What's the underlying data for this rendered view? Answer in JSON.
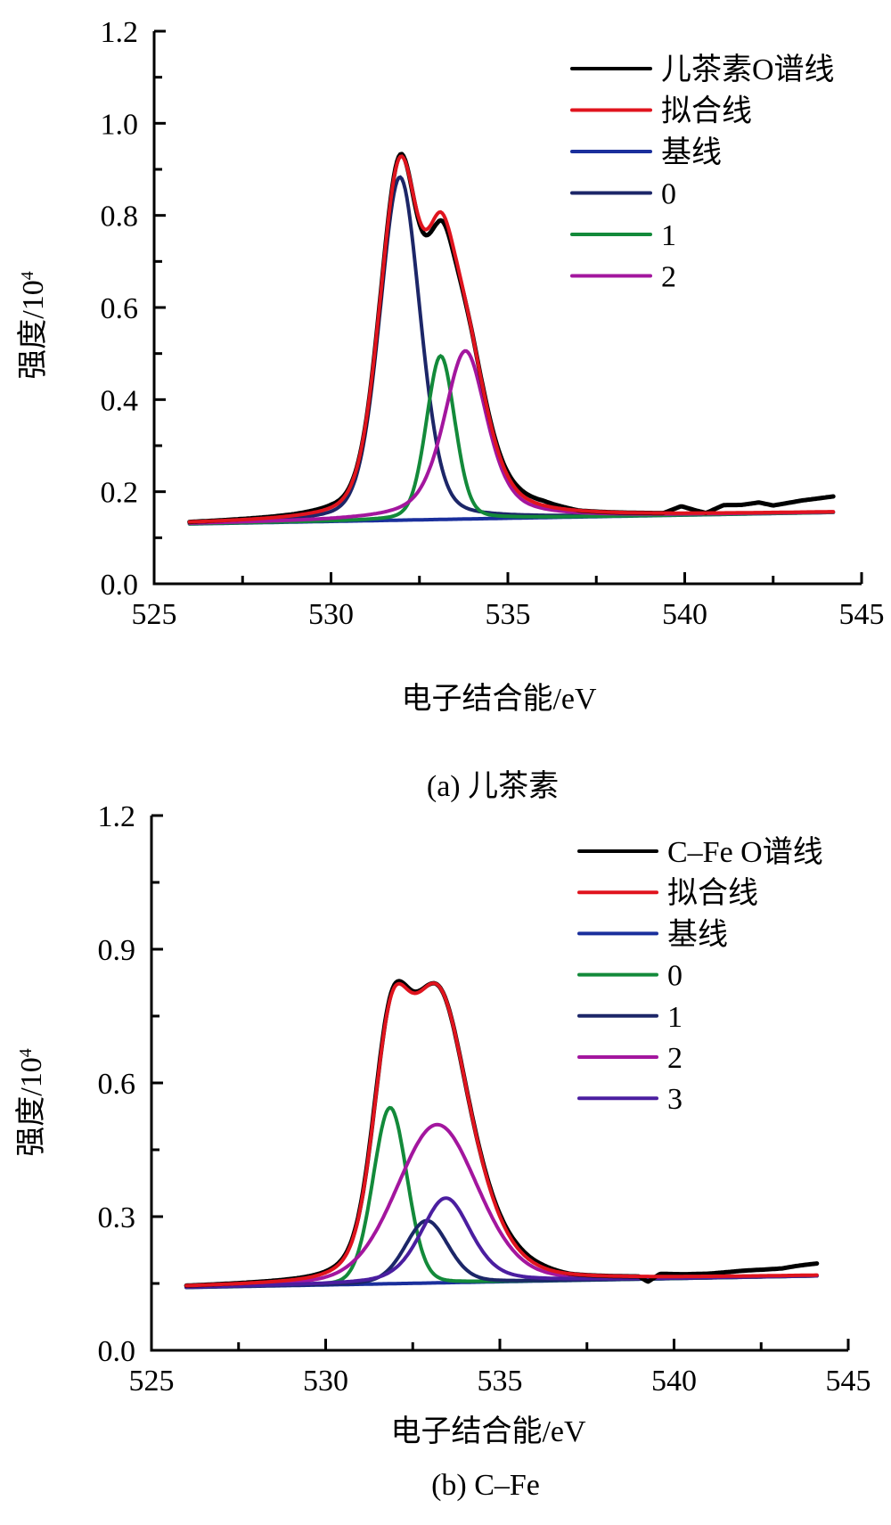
{
  "chart_data": [
    {
      "type": "line",
      "caption": "(a) 儿茶素",
      "xlabel": "电子结合能/eV",
      "ylabel": "强度/10",
      "ylabel_sup": "4",
      "xlim": [
        525,
        545
      ],
      "ylim": [
        0.0,
        1.2
      ],
      "xticks": [
        "525",
        "530",
        "535",
        "540",
        "545"
      ],
      "xtick_values": [
        525,
        530,
        535,
        540,
        545
      ],
      "xminor": [
        527.5,
        532.5,
        537.5,
        542.5
      ],
      "yticks": [
        "0.0",
        "0.2",
        "0.4",
        "0.6",
        "0.8",
        "1.0",
        "1.2"
      ],
      "ytick_values": [
        0.0,
        0.2,
        0.4,
        0.6,
        0.8,
        1.0,
        1.2
      ],
      "yminor": [
        0.1,
        0.3,
        0.5,
        0.7,
        0.9,
        1.1
      ],
      "grid": false,
      "legend_position": "top-right",
      "x_range": [
        526.0,
        544.2
      ],
      "baseline": {
        "start": 0.13,
        "end": 0.155
      },
      "legend": [
        {
          "label": "儿茶素O谱线",
          "color": "#000000",
          "role": "data"
        },
        {
          "label": "拟合线",
          "color": "#e0141e",
          "role": "fit"
        },
        {
          "label": "基线",
          "color": "#1a2f9c",
          "role": "baseline"
        },
        {
          "label": "0",
          "color": "#1c2668",
          "role": "peak",
          "peak": 0
        },
        {
          "label": "1",
          "color": "#138a3a",
          "role": "peak",
          "peak": 1
        },
        {
          "label": "2",
          "color": "#a3169e",
          "role": "peak",
          "peak": 2
        }
      ],
      "peaks": [
        {
          "name": "0",
          "center": 531.95,
          "height": 0.745,
          "fwhm": 1.35,
          "lorentz": 0.25
        },
        {
          "name": "1",
          "center": 533.1,
          "height": 0.355,
          "fwhm": 0.95,
          "lorentz": 0.2
        },
        {
          "name": "2",
          "center": 533.8,
          "height": 0.365,
          "fwhm": 1.45,
          "lorentz": 0.55
        }
      ],
      "data_noise": [
        [
          526.0,
          0.0
        ],
        [
          529.0,
          0.003
        ],
        [
          530.0,
          0.006
        ],
        [
          531.0,
          0.0
        ],
        [
          532.0,
          0.005
        ],
        [
          533.0,
          -0.02
        ],
        [
          534.0,
          0.0
        ],
        [
          535.3,
          0.01
        ],
        [
          536.0,
          0.01
        ],
        [
          537.0,
          0.0
        ],
        [
          539.4,
          0.0
        ],
        [
          539.9,
          0.015
        ],
        [
          540.3,
          0.006
        ],
        [
          540.6,
          0.0
        ],
        [
          541.1,
          0.017
        ],
        [
          541.6,
          0.017
        ],
        [
          542.1,
          0.022
        ],
        [
          542.5,
          0.015
        ],
        [
          543.3,
          0.025
        ],
        [
          544.2,
          0.033
        ]
      ]
    },
    {
      "type": "line",
      "caption": "(b) C–Fe",
      "xlabel": "电子结合能/eV",
      "ylabel": "强度/10",
      "ylabel_sup": "4",
      "xlim": [
        525,
        545
      ],
      "ylim": [
        0.0,
        1.2
      ],
      "xticks": [
        "525",
        "530",
        "535",
        "540",
        "545"
      ],
      "xtick_values": [
        525,
        530,
        535,
        540,
        545
      ],
      "xminor": [
        527.5,
        532.5,
        537.5,
        542.5
      ],
      "yticks": [
        "0.0",
        "0.3",
        "0.6",
        "0.9",
        "1.2"
      ],
      "ytick_values": [
        0.0,
        0.3,
        0.6,
        0.9,
        1.2
      ],
      "yminor": [
        0.15,
        0.45,
        0.75,
        1.05
      ],
      "grid": false,
      "legend_position": "top-right",
      "x_range": [
        526.0,
        544.1
      ],
      "baseline": {
        "start": 0.141,
        "end": 0.167
      },
      "legend": [
        {
          "label": "C–Fe O谱线",
          "color": "#000000",
          "role": "data"
        },
        {
          "label": "拟合线",
          "color": "#e0141e",
          "role": "fit"
        },
        {
          "label": "基线",
          "color": "#1a2f9c",
          "role": "baseline"
        },
        {
          "label": "0",
          "color": "#138a3a",
          "role": "peak",
          "peak": 0
        },
        {
          "label": "1",
          "color": "#1c2668",
          "role": "peak",
          "peak": 1
        },
        {
          "label": "2",
          "color": "#a3169e",
          "role": "peak",
          "peak": 2
        },
        {
          "label": "3",
          "color": "#4b1ea0",
          "role": "peak",
          "peak": 3
        }
      ],
      "peaks": [
        {
          "name": "0",
          "center": 531.85,
          "height": 0.395,
          "fwhm": 1.15,
          "lorentz": 0.1
        },
        {
          "name": "1",
          "center": 532.9,
          "height": 0.14,
          "fwhm": 1.45,
          "lorentz": 0.2
        },
        {
          "name": "2",
          "center": 533.2,
          "height": 0.355,
          "fwhm": 2.75,
          "lorentz": 0.2
        },
        {
          "name": "3",
          "center": 533.45,
          "height": 0.19,
          "fwhm": 1.7,
          "lorentz": 0.4
        }
      ],
      "data_noise": [
        [
          526.0,
          0.0
        ],
        [
          530.0,
          0.003
        ],
        [
          532.3,
          0.006
        ],
        [
          533.0,
          0.0
        ],
        [
          534.0,
          0.0
        ],
        [
          535.5,
          0.008
        ],
        [
          536.2,
          0.006
        ],
        [
          537.0,
          0.0
        ],
        [
          539.0,
          0.0
        ],
        [
          539.25,
          -0.012
        ],
        [
          539.6,
          0.006
        ],
        [
          540.3,
          0.005
        ],
        [
          541.0,
          0.006
        ],
        [
          541.5,
          0.009
        ],
        [
          542.0,
          0.012
        ],
        [
          542.6,
          0.014
        ],
        [
          543.1,
          0.016
        ],
        [
          543.6,
          0.022
        ],
        [
          544.1,
          0.026
        ]
      ]
    }
  ]
}
